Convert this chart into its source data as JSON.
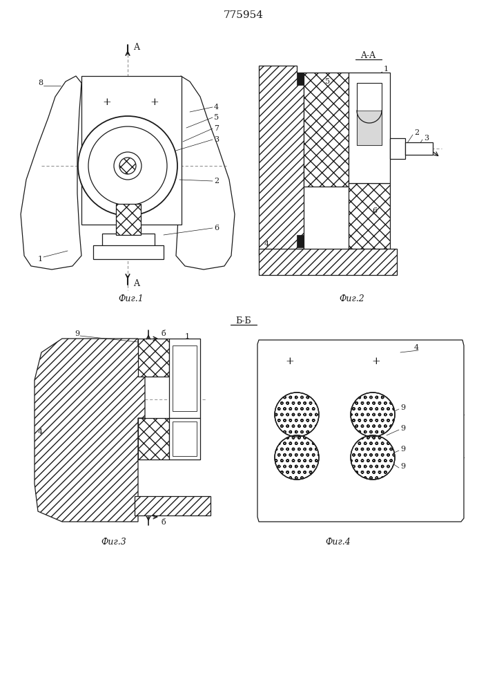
{
  "title": "775954",
  "title_fontsize": 11,
  "fig1_label": "Фиг.1",
  "fig2_label": "Фиг.2",
  "fig3_label": "Фиг.3",
  "fig4_label": "Фиг.4",
  "section_aa": "A-A",
  "section_bb": "Б-Б",
  "bg_color": "#ffffff",
  "line_color": "#1a1a1a"
}
